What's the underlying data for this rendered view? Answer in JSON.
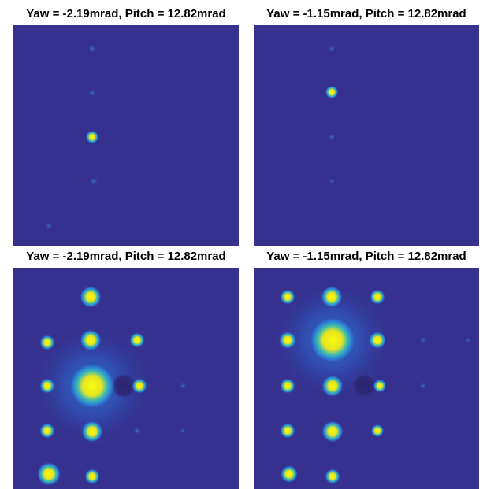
{
  "panels": [
    {
      "title": "Yaw = -2.19mrad, Pitch = 12.82mrad"
    },
    {
      "title": "Yaw = -1.15mrad, Pitch = 12.82mrad"
    },
    {
      "title": "Yaw = -2.19mrad, Pitch = 12.82mrad"
    },
    {
      "title": "Yaw = -1.15mrad, Pitch = 12.82mrad"
    }
  ]
}
